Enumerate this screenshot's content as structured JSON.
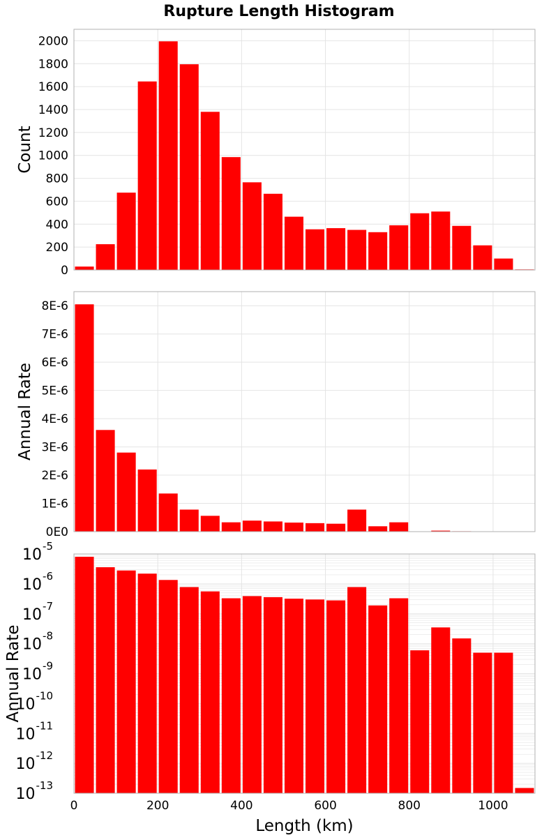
{
  "title": "Rupture Length Histogram",
  "colors": {
    "bar": "#ff0000",
    "frame": "#b0b0b0",
    "grid": "#e4e4e4",
    "text": "#000000"
  },
  "chart_data": [
    {
      "type": "bar",
      "title": "Rupture Length Histogram",
      "xlabel": "",
      "ylabel": "Count",
      "xlim": [
        0,
        1100
      ],
      "ylim": [
        0,
        2100
      ],
      "grid": true,
      "bin_width": 50,
      "x": [
        25,
        75,
        125,
        175,
        225,
        275,
        325,
        375,
        425,
        475,
        525,
        575,
        625,
        675,
        725,
        775,
        825,
        875,
        925,
        975,
        1025,
        1075
      ],
      "values": [
        30,
        225,
        675,
        1645,
        1995,
        1795,
        1380,
        985,
        765,
        665,
        465,
        355,
        365,
        350,
        330,
        390,
        495,
        510,
        385,
        215,
        100,
        5
      ],
      "yticks": [
        0,
        200,
        400,
        600,
        800,
        1000,
        1200,
        1400,
        1600,
        1800,
        2000
      ],
      "ytick_labels": [
        "0",
        "200",
        "400",
        "600",
        "800",
        "1000",
        "1200",
        "1400",
        "1600",
        "1800",
        "2000"
      ]
    },
    {
      "type": "bar",
      "xlabel": "",
      "ylabel": "Annual Rate",
      "xlim": [
        0,
        1100
      ],
      "ylim": [
        0,
        8.5e-06
      ],
      "grid": true,
      "bin_width": 50,
      "x": [
        25,
        75,
        125,
        175,
        225,
        275,
        325,
        375,
        425,
        475,
        525,
        575,
        625,
        675,
        725,
        775,
        825,
        875,
        925,
        975,
        1025,
        1075
      ],
      "values": [
        8.05e-06,
        3.6e-06,
        2.8e-06,
        2.2e-06,
        1.35e-06,
        7.8e-07,
        5.6e-07,
        3.3e-07,
        3.9e-07,
        3.6e-07,
        3.2e-07,
        3e-07,
        2.8e-07,
        7.8e-07,
        1.9e-07,
        3.3e-07,
        6e-09,
        3.5e-08,
        1.5e-08,
        5e-09,
        5e-09,
        1e-13
      ],
      "yticks": [
        0,
        1e-06,
        2e-06,
        3e-06,
        4e-06,
        5e-06,
        6e-06,
        7e-06,
        8e-06
      ],
      "ytick_labels": [
        "0E0",
        "1E-6",
        "2E-6",
        "3E-6",
        "4E-6",
        "5E-6",
        "6E-6",
        "7E-6",
        "8E-6"
      ]
    },
    {
      "type": "bar",
      "xlabel": "Length (km)",
      "ylabel": "Annual Rate",
      "yscale": "log",
      "xlim": [
        0,
        1100
      ],
      "ylim": [
        1e-13,
        1e-05
      ],
      "grid": true,
      "bin_width": 50,
      "x": [
        25,
        75,
        125,
        175,
        225,
        275,
        325,
        375,
        425,
        475,
        525,
        575,
        625,
        675,
        725,
        775,
        825,
        875,
        925,
        975,
        1025,
        1075
      ],
      "values": [
        8.05e-06,
        3.6e-06,
        2.8e-06,
        2.2e-06,
        1.35e-06,
        7.8e-07,
        5.6e-07,
        3.3e-07,
        3.9e-07,
        3.6e-07,
        3.2e-07,
        3e-07,
        2.8e-07,
        7.8e-07,
        1.9e-07,
        3.3e-07,
        6e-09,
        3.5e-08,
        1.5e-08,
        5e-09,
        5e-09,
        1.5e-13
      ],
      "ytick_exponents": [
        -13,
        -12,
        -11,
        -10,
        -9,
        -8,
        -7,
        -6,
        -5
      ],
      "ytick_base": "10",
      "xticks": [
        0,
        200,
        400,
        600,
        800,
        1000
      ],
      "xtick_labels": [
        "0",
        "200",
        "400",
        "600",
        "800",
        "1000"
      ]
    }
  ]
}
